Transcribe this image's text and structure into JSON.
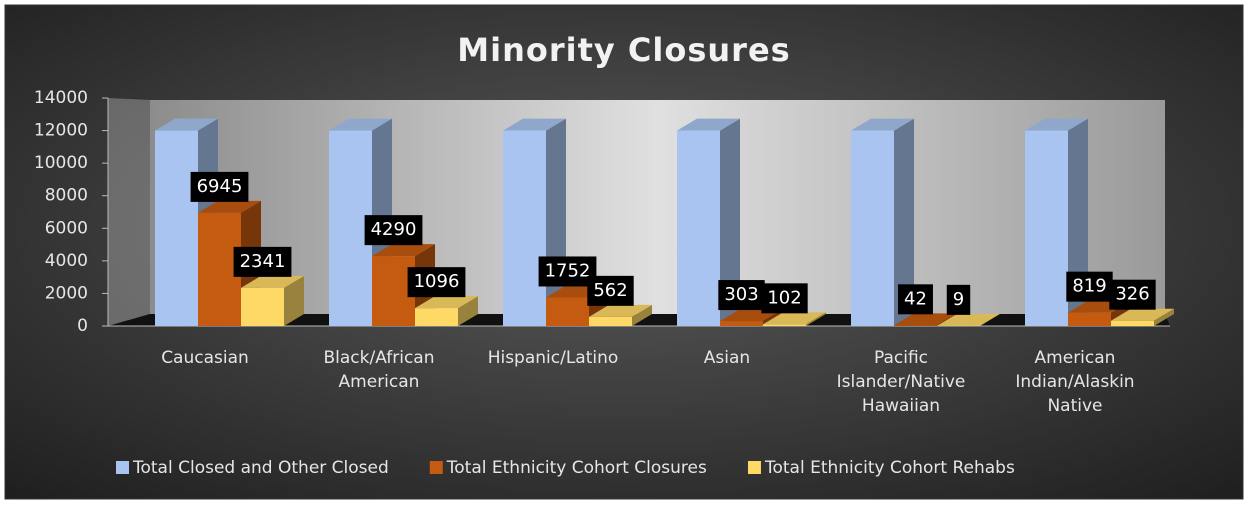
{
  "chart_data": {
    "type": "bar3d",
    "title": "Minority Closures",
    "categories": [
      "Caucasian",
      "Black/African American",
      "Hispanic/Latino",
      "Asian",
      "Pacific Islander/Native Hawaiian",
      "American Indian/Alaskin Native"
    ],
    "series": [
      {
        "name": "Total Closed and Other Closed",
        "color": "#a9c4f0",
        "labels": false,
        "values": [
          12000,
          12000,
          12000,
          12000,
          12000,
          12000
        ]
      },
      {
        "name": "Total Ethnicity Cohort Closures",
        "color": "#c55a11",
        "labels": true,
        "values": [
          6945,
          4290,
          1752,
          303,
          42,
          819
        ]
      },
      {
        "name": "Total Ethnicity Cohort Rehabs",
        "color": "#ffd966",
        "labels": true,
        "values": [
          2341,
          1096,
          562,
          102,
          9,
          326
        ]
      }
    ],
    "ylim": [
      0,
      14000
    ],
    "yticks": [
      0,
      2000,
      4000,
      6000,
      8000,
      10000,
      12000,
      14000
    ],
    "legend": "bottom"
  }
}
